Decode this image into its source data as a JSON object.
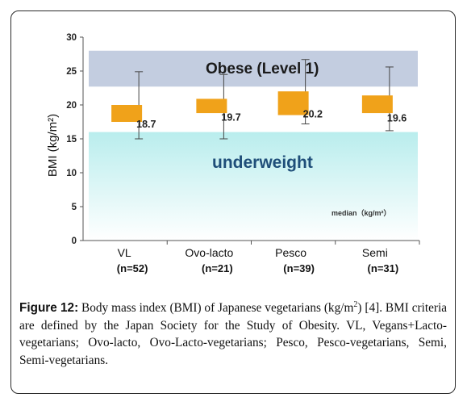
{
  "chart_data": {
    "type": "box",
    "ylabel": "BMI (kg/m²)",
    "ylim": [
      0,
      30
    ],
    "yticks": [
      0,
      5,
      10,
      15,
      20,
      25,
      30
    ],
    "categories": [
      "VL",
      "Ovo-lacto",
      "Pesco",
      "Semi"
    ],
    "sample_sizes": [
      "(n=52)",
      "(n=21)",
      "(n=39)",
      "(n=31)"
    ],
    "median_labels": [
      "18.7",
      "19.7",
      "20.2",
      "19.6"
    ],
    "boxes": [
      {
        "category": "VL",
        "min": 15.0,
        "q1": 17.5,
        "median": 18.7,
        "q3": 20.0,
        "max": 24.9
      },
      {
        "category": "Ovo-lacto",
        "min": 15.0,
        "q1": 18.8,
        "median": 19.7,
        "q3": 20.9,
        "max": 24.5
      },
      {
        "category": "Pesco",
        "min": 17.2,
        "q1": 18.5,
        "median": 20.2,
        "q3": 22.0,
        "max": 26.7
      },
      {
        "category": "Semi",
        "min": 16.2,
        "q1": 18.8,
        "median": 19.6,
        "q3": 21.4,
        "max": 25.6
      }
    ],
    "bands": [
      {
        "label": "Obese (Level 1)",
        "from": 22.7,
        "to": 28.0,
        "color": "#c3cde0"
      },
      {
        "label": "underweight",
        "from": 0,
        "to": 16.0,
        "color_top": "#b9eded",
        "color_bottom": "#ffffff"
      }
    ],
    "note": "median（kg/m²）",
    "box_color": "#f0a21a",
    "grid": false,
    "legend": "none"
  },
  "caption": {
    "label": "Figure 12:",
    "text_before_sup": " Body mass index (BMI) of Japanese vegetarians (kg/m",
    "sup": "2",
    "text_after_sup": ") [4]. BMI criteria are defined by the Japan Society for the Study of Obesity. VL, Vegans+Lacto-vegetarians; Ovo-lacto, Ovo-Lacto-vegetarians; Pesco, Pesco-vegetarians, Semi, Semi-vegetarians."
  }
}
